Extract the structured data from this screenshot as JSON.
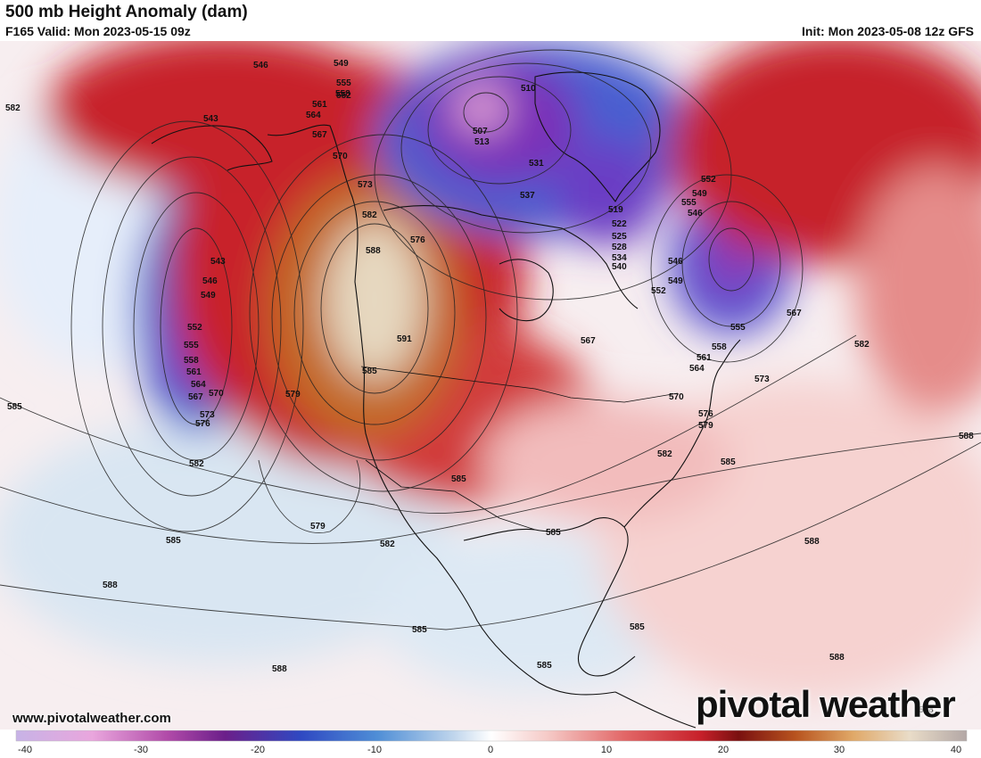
{
  "header": {
    "title": "500 mb Height Anomaly (dam)",
    "valid": "F165 Valid: Mon 2023-05-15 09z",
    "init": "Init: Mon 2023-05-08 12z GFS"
  },
  "footer": {
    "website": "www.pivotalweather.com",
    "brand": "pivotal weather"
  },
  "colorbar": {
    "ticks": [
      "-40",
      "-30",
      "-20",
      "-10",
      "0",
      "10",
      "20",
      "30",
      "40"
    ]
  },
  "contour_labels": [
    "546",
    "543",
    "549",
    "552",
    "555",
    "558",
    "561",
    "564",
    "567",
    "570",
    "573",
    "576",
    "579",
    "582",
    "585",
    "588",
    "591",
    "507",
    "510",
    "513",
    "519",
    "522",
    "525",
    "528",
    "531",
    "534",
    "537",
    "540"
  ],
  "colors": {
    "strong_negative": "#6a3fc4",
    "negative": "#3b6fd0",
    "weak_negative": "#d7e6f2",
    "neutral": "#ffffff",
    "weak_positive": "#f6d4d0",
    "positive": "#c8202a",
    "strong_positive": "#c06a25",
    "extreme_positive": "#e8dcc6"
  }
}
